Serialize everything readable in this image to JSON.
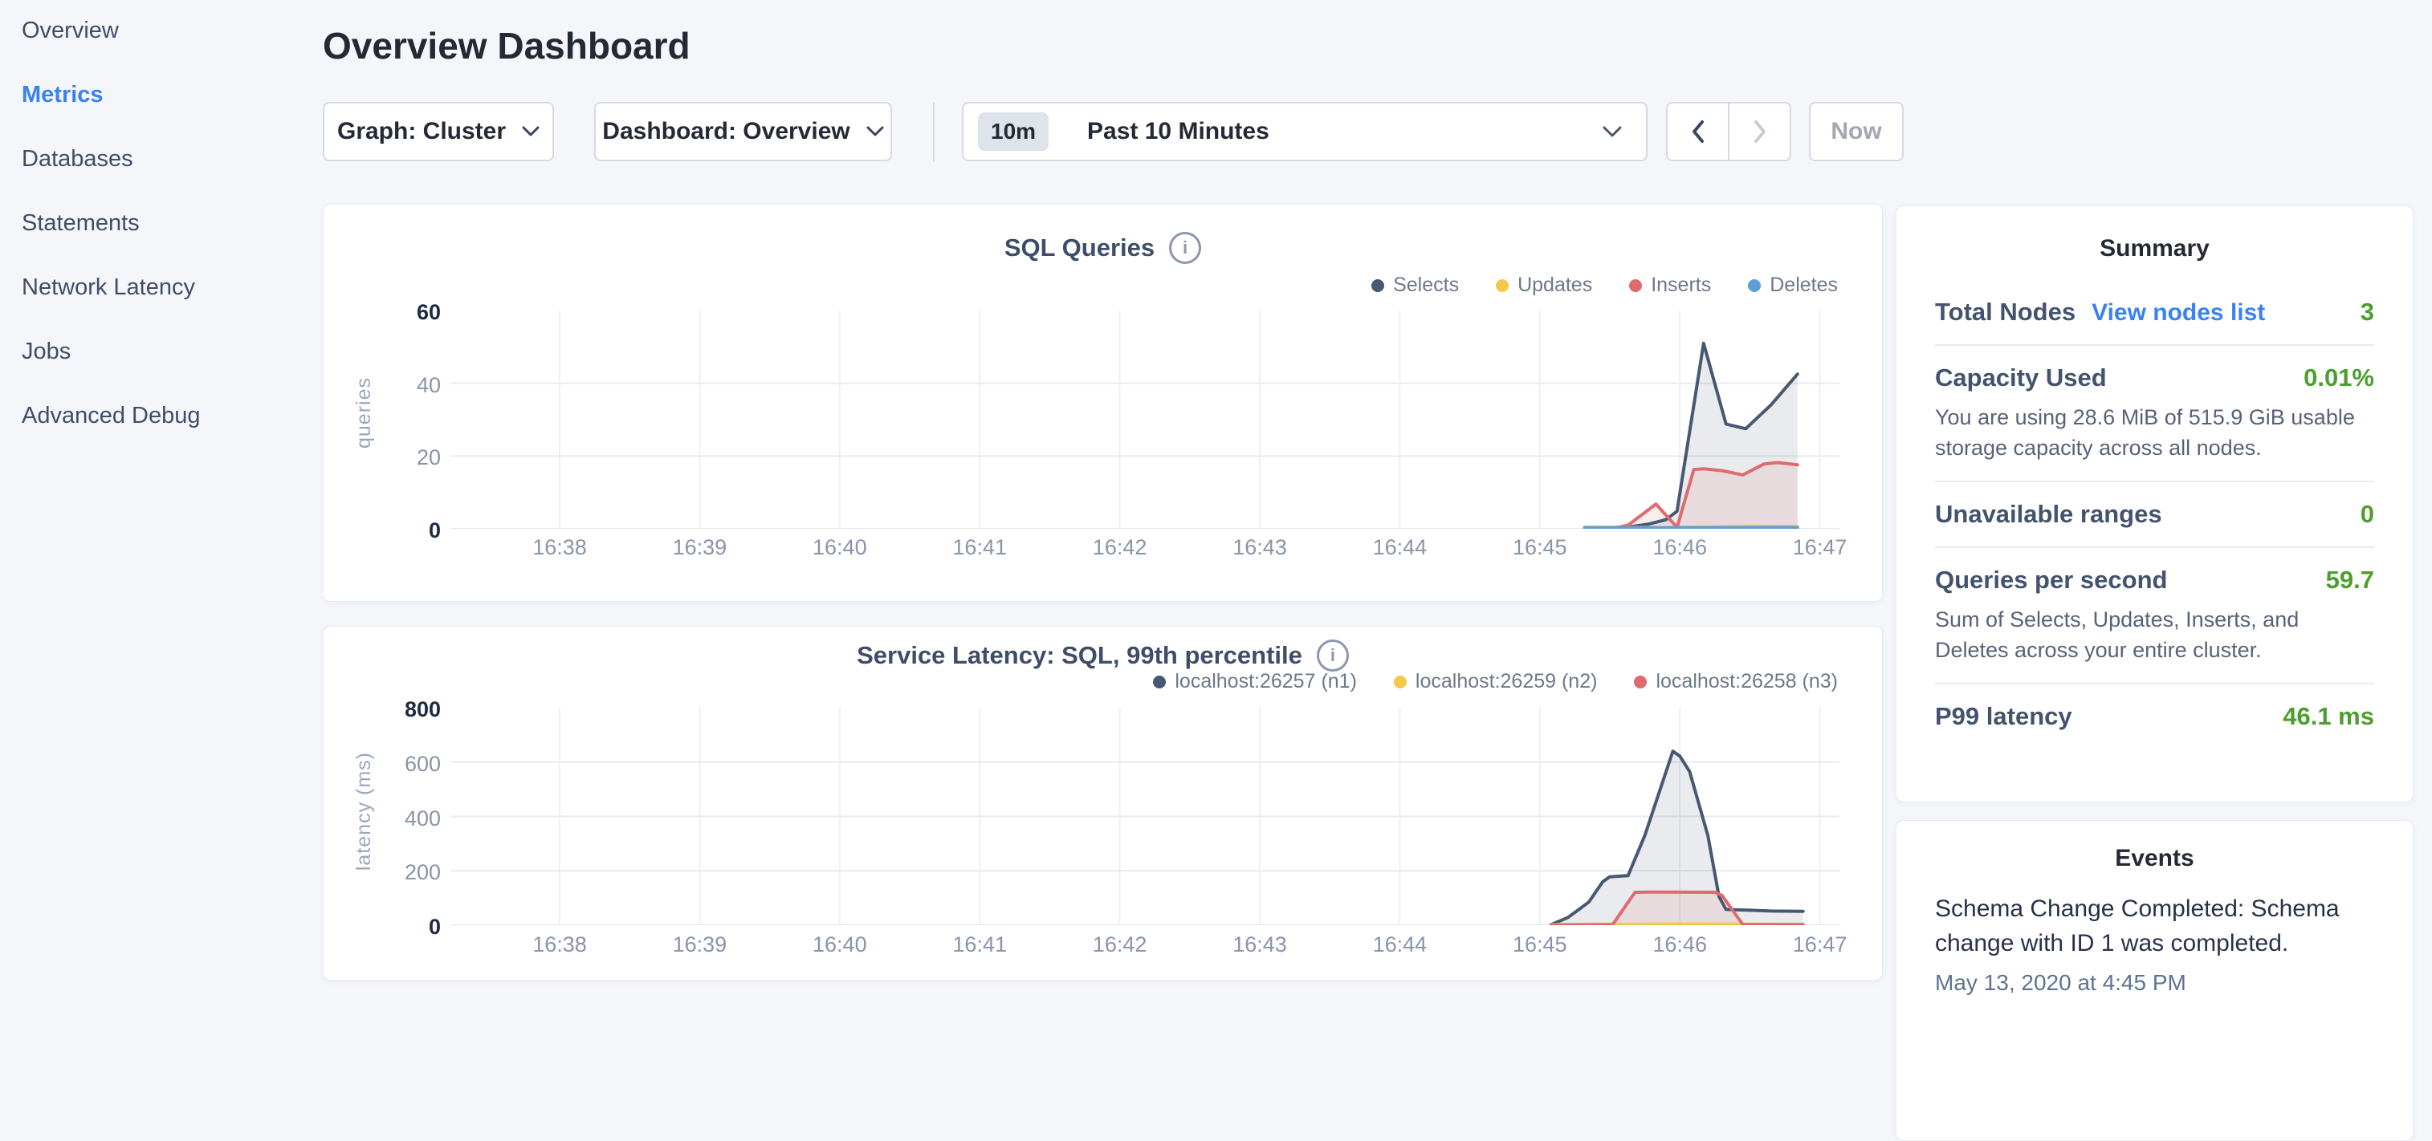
{
  "header": {
    "title": "Overview Dashboard"
  },
  "sidebar": {
    "items": [
      {
        "label": "Overview",
        "active": false
      },
      {
        "label": "Metrics",
        "active": true
      },
      {
        "label": "Databases",
        "active": false
      },
      {
        "label": "Statements",
        "active": false
      },
      {
        "label": "Network Latency",
        "active": false
      },
      {
        "label": "Jobs",
        "active": false
      },
      {
        "label": "Advanced Debug",
        "active": false
      }
    ]
  },
  "toolbar": {
    "graph_label": "Graph: Cluster",
    "dashboard_label": "Dashboard: Overview",
    "time_badge": "10m",
    "time_label": "Past 10 Minutes",
    "now_label": "Now"
  },
  "icons": {
    "info": "i"
  },
  "colors": {
    "accent_blue": "#3a82f2",
    "value_green": "#4c9e2f",
    "series_navy": "#475872",
    "series_yellow": "#f2c94c",
    "series_red": "#df6b6e",
    "series_blue": "#5f9fd6"
  },
  "chart_data": [
    {
      "type": "line",
      "title": "SQL Queries",
      "ylabel": "queries",
      "ylim": [
        0,
        60
      ],
      "yticks": [
        0,
        20,
        40,
        60
      ],
      "xlim": [
        37.22,
        47.14
      ],
      "xticks": [
        38,
        39,
        40,
        41,
        42,
        43,
        44,
        45,
        46,
        47
      ],
      "xtick_labels": [
        "16:38",
        "16:39",
        "16:40",
        "16:41",
        "16:42",
        "16:43",
        "16:44",
        "16:45",
        "16:46",
        "16:47"
      ],
      "grid": true,
      "legend_position": "top-right",
      "series": [
        {
          "name": "Selects",
          "color": "#475872",
          "fill": "rgba(71,88,114,0.12)",
          "points": [
            [
              45.32,
              0.4
            ],
            [
              45.62,
              0.4
            ],
            [
              45.78,
              1.3
            ],
            [
              45.9,
              2.5
            ],
            [
              45.98,
              4.8
            ],
            [
              46.17,
              51
            ],
            [
              46.33,
              28.8
            ],
            [
              46.47,
              27.5
            ],
            [
              46.65,
              34
            ],
            [
              46.84,
              42.5
            ]
          ]
        },
        {
          "name": "Updates",
          "color": "#f2c94c",
          "fill": null,
          "points": [
            [
              45.32,
              0.35
            ],
            [
              45.9,
              0.35
            ],
            [
              46.2,
              0.5
            ],
            [
              46.5,
              0.7
            ],
            [
              46.84,
              0.6
            ]
          ]
        },
        {
          "name": "Inserts",
          "color": "#df6b6e",
          "fill": "rgba(223,107,110,0.12)",
          "points": [
            [
              45.55,
              0.3
            ],
            [
              45.63,
              1
            ],
            [
              45.83,
              6.8
            ],
            [
              45.98,
              0.4
            ],
            [
              46.1,
              16.3
            ],
            [
              46.17,
              16.5
            ],
            [
              46.3,
              16
            ],
            [
              46.45,
              14.8
            ],
            [
              46.6,
              17.8
            ],
            [
              46.7,
              18.2
            ],
            [
              46.84,
              17.6
            ]
          ]
        },
        {
          "name": "Deletes",
          "color": "#5f9fd6",
          "fill": null,
          "points": [
            [
              45.32,
              0.25
            ],
            [
              46.84,
              0.35
            ]
          ]
        }
      ]
    },
    {
      "type": "line",
      "title": "Service Latency: SQL, 99th percentile",
      "ylabel": "latency (ms)",
      "ylim": [
        0,
        800
      ],
      "yticks": [
        0,
        200,
        400,
        600,
        800
      ],
      "xlim": [
        37.22,
        47.14
      ],
      "xticks": [
        38,
        39,
        40,
        41,
        42,
        43,
        44,
        45,
        46,
        47
      ],
      "xtick_labels": [
        "16:38",
        "16:39",
        "16:40",
        "16:41",
        "16:42",
        "16:43",
        "16:44",
        "16:45",
        "16:46",
        "16:47"
      ],
      "grid": true,
      "legend_position": "top-right",
      "series": [
        {
          "name": "localhost:26257 (n1)",
          "color": "#475872",
          "fill": "rgba(71,88,114,0.12)",
          "points": [
            [
              45.08,
              2
            ],
            [
              45.2,
              28
            ],
            [
              45.28,
              58
            ],
            [
              45.35,
              85
            ],
            [
              45.45,
              160
            ],
            [
              45.5,
              178
            ],
            [
              45.63,
              182
            ],
            [
              45.75,
              330
            ],
            [
              45.95,
              640
            ],
            [
              46.0,
              622
            ],
            [
              46.07,
              565
            ],
            [
              46.2,
              330
            ],
            [
              46.28,
              105
            ],
            [
              46.33,
              58
            ],
            [
              46.5,
              55
            ],
            [
              46.65,
              52
            ],
            [
              46.88,
              51
            ]
          ]
        },
        {
          "name": "localhost:26259 (n2)",
          "color": "#f2c94c",
          "fill": null,
          "points": [
            [
              45.08,
              2
            ],
            [
              45.5,
              3
            ],
            [
              46.0,
              4
            ],
            [
              46.88,
              3
            ]
          ]
        },
        {
          "name": "localhost:26258 (n3)",
          "color": "#df6b6e",
          "fill": "rgba(223,107,110,0.12)",
          "points": [
            [
              45.08,
              1
            ],
            [
              45.52,
              2
            ],
            [
              45.68,
              121
            ],
            [
              45.8,
              122
            ],
            [
              46.25,
              121
            ],
            [
              46.3,
              110
            ],
            [
              46.45,
              2
            ],
            [
              46.88,
              2
            ]
          ]
        }
      ]
    }
  ],
  "summary": {
    "title": "Summary",
    "stats": [
      {
        "label": "Total Nodes",
        "link": "View nodes list",
        "value": "3"
      },
      {
        "label": "Capacity Used",
        "value": "0.01%",
        "description": "You are using 28.6 MiB of 515.9 GiB usable storage capacity across all nodes."
      },
      {
        "label": "Unavailable ranges",
        "value": "0"
      },
      {
        "label": "Queries per second",
        "value": "59.7",
        "description": "Sum of Selects, Updates, Inserts, and Deletes across your entire cluster."
      },
      {
        "label": "P99 latency",
        "value": "46.1 ms"
      }
    ]
  },
  "events": {
    "title": "Events",
    "items": [
      {
        "text": "Schema Change Completed: Schema change with ID 1 was completed.",
        "time": "May 13, 2020 at 4:45 PM"
      }
    ]
  }
}
